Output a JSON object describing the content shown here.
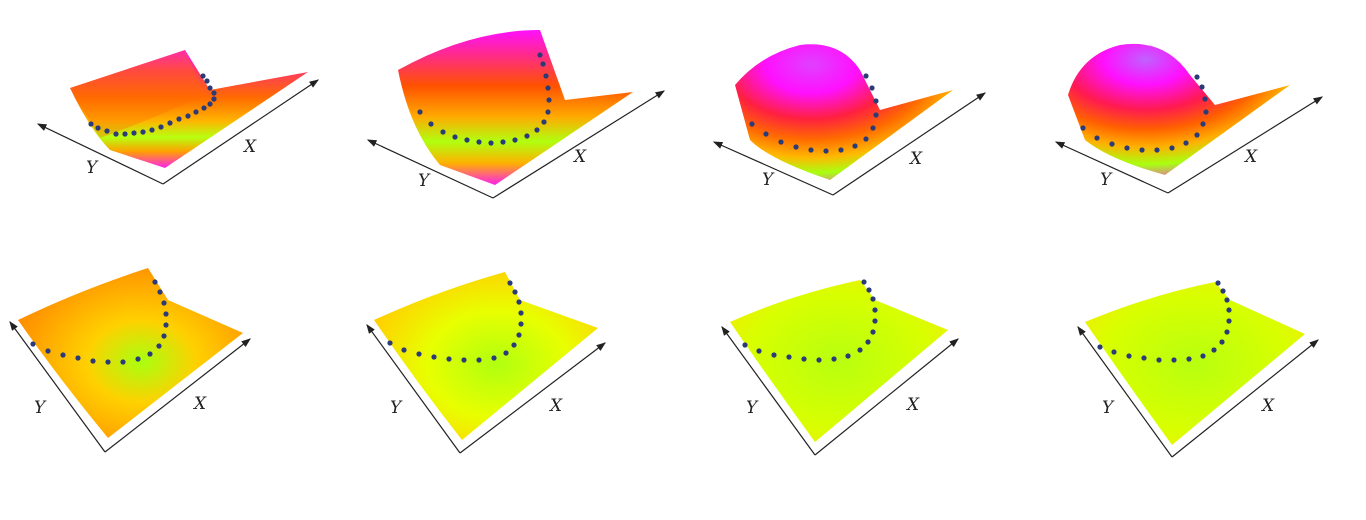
{
  "axis_labels": {
    "x": "X",
    "y": "Y"
  },
  "colors": {
    "top_row_gradient": [
      "#ff00ff",
      "#ff2a6a",
      "#ff5a00",
      "#ffb000",
      "#b8ff00",
      "#ffb000",
      "#ff00ff"
    ],
    "bottom_row_gradient": [
      "#ff9000",
      "#ffcc00",
      "#c8ff00",
      "#ffcc00",
      "#ffd400"
    ],
    "dot": "#2a3b78",
    "axis": "#222222"
  },
  "panels": [
    {
      "row": "top",
      "surface": "ridge-1"
    },
    {
      "row": "top",
      "surface": "ridge-2"
    },
    {
      "row": "top",
      "surface": "ridge-3"
    },
    {
      "row": "top",
      "surface": "ridge-4"
    },
    {
      "row": "bottom",
      "surface": "plane-1"
    },
    {
      "row": "bottom",
      "surface": "plane-2"
    },
    {
      "row": "bottom",
      "surface": "plane-3"
    },
    {
      "row": "bottom",
      "surface": "plane-4"
    }
  ]
}
